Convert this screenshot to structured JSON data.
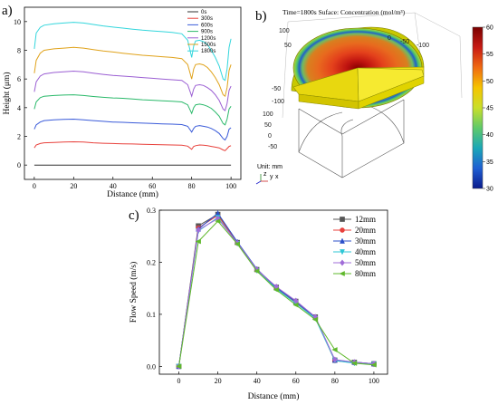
{
  "panels": {
    "a": {
      "letter": "a)"
    },
    "b": {
      "letter": "b)"
    },
    "c": {
      "letter": "c)"
    }
  },
  "chart_data": [
    {
      "type": "line",
      "id": "a",
      "xlabel": "Distance (mm)",
      "ylabel": "Height (μm)",
      "xlim": [
        -5,
        105
      ],
      "ylim": [
        -1,
        11
      ],
      "xticks": [
        0,
        20,
        40,
        60,
        80,
        100
      ],
      "yticks": [
        0,
        2,
        4,
        6,
        8,
        10
      ],
      "legend_position": "top-right",
      "x": [
        0,
        1,
        3,
        5,
        10,
        15,
        20,
        25,
        30,
        35,
        40,
        45,
        50,
        55,
        60,
        65,
        70,
        75,
        78,
        80,
        81,
        82,
        84,
        86,
        88,
        90,
        92,
        94,
        96,
        97,
        98,
        99,
        100
      ],
      "series": [
        {
          "name": "0s",
          "color": "#303030",
          "values": [
            0,
            0,
            0,
            0,
            0,
            0,
            0,
            0,
            0,
            0,
            0,
            0,
            0,
            0,
            0,
            0,
            0,
            0,
            0,
            0,
            0,
            0,
            0,
            0,
            0,
            0,
            0,
            0,
            0,
            0,
            0,
            0,
            0
          ]
        },
        {
          "name": "300s",
          "color": "#e8413c",
          "values": [
            1.2,
            1.4,
            1.5,
            1.55,
            1.58,
            1.6,
            1.62,
            1.6,
            1.55,
            1.52,
            1.5,
            1.48,
            1.47,
            1.45,
            1.43,
            1.42,
            1.4,
            1.38,
            1.32,
            1.1,
            1.3,
            1.35,
            1.4,
            1.38,
            1.35,
            1.3,
            1.25,
            1.2,
            1.05,
            1.0,
            1.15,
            1.3,
            1.35
          ]
        },
        {
          "name": "600s",
          "color": "#3a5bd9",
          "values": [
            2.5,
            2.8,
            3.0,
            3.1,
            3.15,
            3.18,
            3.2,
            3.15,
            3.1,
            3.05,
            3.0,
            2.98,
            2.95,
            2.92,
            2.9,
            2.87,
            2.85,
            2.82,
            2.7,
            2.3,
            2.55,
            2.7,
            2.75,
            2.7,
            2.65,
            2.55,
            2.4,
            2.2,
            1.85,
            1.75,
            2.0,
            2.5,
            2.6
          ]
        },
        {
          "name": "900s",
          "color": "#2ab96a",
          "values": [
            3.9,
            4.4,
            4.7,
            4.8,
            4.85,
            4.88,
            4.9,
            4.85,
            4.78,
            4.72,
            4.68,
            4.65,
            4.6,
            4.55,
            4.52,
            4.48,
            4.45,
            4.4,
            4.2,
            3.6,
            4.0,
            4.2,
            4.25,
            4.2,
            4.1,
            3.95,
            3.7,
            3.4,
            2.9,
            2.8,
            3.2,
            3.9,
            4.1
          ]
        },
        {
          "name": "1200s",
          "color": "#9b5fd3",
          "values": [
            5.1,
            5.8,
            6.2,
            6.35,
            6.45,
            6.5,
            6.55,
            6.5,
            6.4,
            6.32,
            6.25,
            6.2,
            6.15,
            6.1,
            6.05,
            6.0,
            5.95,
            5.9,
            5.6,
            4.8,
            5.3,
            5.55,
            5.6,
            5.55,
            5.4,
            5.2,
            4.9,
            4.5,
            3.9,
            3.8,
            4.3,
            5.2,
            5.5
          ]
        },
        {
          "name": "1500s",
          "color": "#e0a21a",
          "values": [
            6.4,
            7.3,
            7.8,
            8.0,
            8.1,
            8.15,
            8.2,
            8.15,
            8.05,
            7.95,
            7.88,
            7.8,
            7.72,
            7.65,
            7.6,
            7.55,
            7.5,
            7.42,
            7.0,
            6.0,
            6.7,
            7.0,
            7.05,
            6.98,
            6.8,
            6.5,
            6.1,
            5.6,
            4.9,
            4.8,
            5.4,
            6.6,
            7.0
          ]
        },
        {
          "name": "1800s",
          "color": "#33d6dc",
          "values": [
            8.1,
            9.2,
            9.6,
            9.75,
            9.85,
            9.9,
            9.95,
            9.9,
            9.8,
            9.7,
            9.62,
            9.55,
            9.47,
            9.4,
            9.35,
            9.3,
            9.25,
            9.15,
            8.7,
            7.5,
            8.3,
            8.65,
            8.7,
            8.6,
            8.4,
            8.0,
            7.5,
            6.9,
            6.0,
            5.9,
            6.7,
            8.2,
            8.8
          ]
        }
      ]
    },
    {
      "type": "line",
      "id": "c",
      "xlabel": "Distance (mm)",
      "ylabel": "Flow Speed (m/s)",
      "xlim": [
        -10,
        107
      ],
      "ylim": [
        -0.015,
        0.3
      ],
      "xticks": [
        0,
        20,
        40,
        60,
        80,
        100
      ],
      "yticks": [
        0.0,
        0.1,
        0.2,
        0.3
      ],
      "ytick_labels": [
        "0.0",
        "0.1",
        "0.2",
        "0.3"
      ],
      "legend_position": "top-right",
      "x": [
        0,
        10,
        20,
        30,
        40,
        50,
        60,
        70,
        80,
        90,
        100
      ],
      "series": [
        {
          "name": "12mm",
          "color": "#555555",
          "marker": "square",
          "values": [
            0.0,
            0.27,
            0.292,
            0.238,
            0.186,
            0.152,
            0.125,
            0.095,
            0.012,
            0.008,
            0.005
          ]
        },
        {
          "name": "20mm",
          "color": "#e8413c",
          "marker": "circle",
          "values": [
            0.0,
            0.266,
            0.29,
            0.237,
            0.185,
            0.15,
            0.122,
            0.093,
            0.011,
            0.007,
            0.004
          ]
        },
        {
          "name": "30mm",
          "color": "#2b4fc9",
          "marker": "triangle-up",
          "values": [
            0.0,
            0.264,
            0.294,
            0.239,
            0.187,
            0.151,
            0.124,
            0.094,
            0.012,
            0.008,
            0.005
          ]
        },
        {
          "name": "40mm",
          "color": "#2fc7d6",
          "marker": "triangle-down",
          "values": [
            0.0,
            0.26,
            0.286,
            0.236,
            0.184,
            0.149,
            0.121,
            0.092,
            0.011,
            0.006,
            0.004
          ]
        },
        {
          "name": "50mm",
          "color": "#a06cd8",
          "marker": "diamond",
          "values": [
            0.0,
            0.262,
            0.284,
            0.237,
            0.186,
            0.153,
            0.126,
            0.095,
            0.013,
            0.008,
            0.005
          ]
        },
        {
          "name": "80mm",
          "color": "#5fb82b",
          "marker": "triangle-left",
          "values": [
            0.0,
            0.24,
            0.279,
            0.235,
            0.183,
            0.147,
            0.118,
            0.09,
            0.032,
            0.006,
            0.003
          ]
        }
      ]
    }
  ],
  "sim": {
    "title": "Time=1800s Suface: Concentration (mol/m³)",
    "unit_label": "Unit: mm",
    "axis_labels": [
      "z",
      "y",
      "x"
    ],
    "axis_ticks_top": [
      "0",
      "-50",
      "-100"
    ],
    "axis_ticks_left_top": [
      "100",
      "50"
    ],
    "axis_ticks_left_mid": [
      "-50",
      "-100"
    ],
    "axis_ticks_left_low": [
      "100",
      "50",
      "0",
      "-50"
    ],
    "colorbar": {
      "ticks": [
        "60",
        "55",
        "50",
        "45",
        "40",
        "35",
        "30"
      ],
      "stops": [
        "#7a0000",
        "#c81a14",
        "#f06a12",
        "#f5c400",
        "#c9df2a",
        "#5fca6a",
        "#1aa7b7",
        "#1f5fd3",
        "#0a1a8c"
      ]
    }
  }
}
